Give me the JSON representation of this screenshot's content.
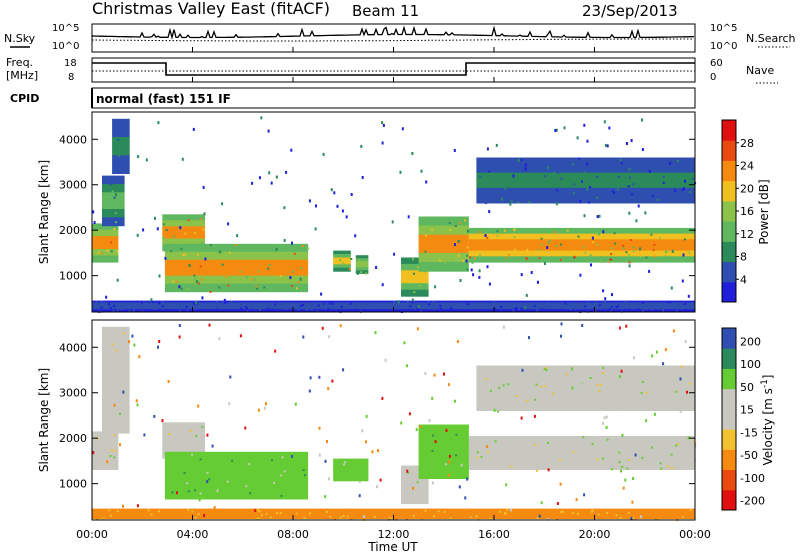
{
  "header": {
    "title": "Christmas Valley East (fitACF)",
    "beam": "Beam 11",
    "date": "23/Sep/2013"
  },
  "top_panel": {
    "left_label": "N.Sky",
    "right_label": "N.Search",
    "tick_top": "10^5",
    "tick_bottom": "10^0"
  },
  "freq_panel": {
    "left_label_1": "Freq.",
    "left_label_2": "[MHz]",
    "right_label": "Nave",
    "left_ticks": [
      "18",
      "8"
    ],
    "right_ticks": [
      "60",
      "0"
    ]
  },
  "cpid_panel": {
    "label": "CPID",
    "text": "normal (fast) 151 IF"
  },
  "colors": {
    "power": [
      "#1f1fd9",
      "#2f4fb0",
      "#2a8a5a",
      "#5fb85f",
      "#8bc24a",
      "#f0c020",
      "#f58a10",
      "#ea4a10",
      "#e01010"
    ],
    "velocity": [
      "#e01010",
      "#ea4a10",
      "#f58a10",
      "#f2c030",
      "#c8c8c0",
      "#c8c8c0",
      "#66cc33",
      "#2a8a5a",
      "#2f4fb0",
      "#1f1fd9"
    ]
  },
  "chart_data": [
    {
      "type": "heatmap",
      "name": "power",
      "xlabel": "",
      "ylabel": "Slant Range [km]",
      "ylim": [
        200,
        4600
      ],
      "xlim": [
        0,
        24
      ],
      "yticks": [
        "1000",
        "2000",
        "3000",
        "4000"
      ],
      "colorbar": {
        "label": "Power [dB]",
        "ticks": [
          "4",
          "8",
          "12",
          "16",
          "20",
          "24",
          "28"
        ],
        "range": [
          0,
          32
        ]
      },
      "features": [
        {
          "t0": 0.0,
          "t1": 1.05,
          "r0": 1300,
          "r1": 2150,
          "level": 26
        },
        {
          "t0": 0.4,
          "t1": 1.3,
          "r0": 2100,
          "r1": 3200,
          "level": 12
        },
        {
          "t0": 0.8,
          "t1": 1.5,
          "r0": 3250,
          "r1": 4450,
          "level": 10
        },
        {
          "t0": 2.8,
          "t1": 4.5,
          "r0": 1550,
          "r1": 2350,
          "level": 24
        },
        {
          "t0": 2.9,
          "t1": 8.6,
          "r0": 650,
          "r1": 1700,
          "level": 24
        },
        {
          "t0": 9.6,
          "t1": 10.3,
          "r0": 1100,
          "r1": 1550,
          "level": 20
        },
        {
          "t0": 10.5,
          "t1": 11.0,
          "r0": 1050,
          "r1": 1450,
          "level": 18
        },
        {
          "t0": 12.3,
          "t1": 13.4,
          "r0": 550,
          "r1": 1400,
          "level": 20
        },
        {
          "t0": 13.0,
          "t1": 15.0,
          "r0": 1100,
          "r1": 2300,
          "level": 24
        },
        {
          "t0": 15.0,
          "t1": 24.0,
          "r0": 1300,
          "r1": 2050,
          "level": 27
        },
        {
          "t0": 15.3,
          "t1": 24.0,
          "r0": 2600,
          "r1": 3600,
          "level": 8
        },
        {
          "t0": 0.0,
          "t1": 24.0,
          "r0": 220,
          "r1": 450,
          "level": 6
        }
      ]
    },
    {
      "type": "heatmap",
      "name": "velocity",
      "xlabel": "Time UT",
      "ylabel": "Slant Range [km]",
      "ylim": [
        200,
        4600
      ],
      "xlim": [
        0,
        24
      ],
      "xticks": [
        "00:00",
        "04:00",
        "08:00",
        "12:00",
        "16:00",
        "20:00",
        "00:00"
      ],
      "yticks": [
        "1000",
        "2000",
        "3000",
        "4000"
      ],
      "colorbar": {
        "label": "Velocity [m s^-1]",
        "ticks": [
          "200",
          "100",
          "50",
          "15",
          "-15",
          "-50",
          "-100",
          "-200"
        ]
      },
      "features": [
        {
          "t0": 0.0,
          "t1": 1.05,
          "r0": 1300,
          "r1": 2150,
          "level": 0
        },
        {
          "t0": 0.4,
          "t1": 1.5,
          "r0": 2100,
          "r1": 4450,
          "level": 0
        },
        {
          "t0": 2.8,
          "t1": 4.5,
          "r0": 1550,
          "r1": 2350,
          "level": 0
        },
        {
          "t0": 2.9,
          "t1": 8.6,
          "r0": 650,
          "r1": 1700,
          "level": 30
        },
        {
          "t0": 9.6,
          "t1": 11.0,
          "r0": 1050,
          "r1": 1550,
          "level": 30
        },
        {
          "t0": 12.3,
          "t1": 13.4,
          "r0": 550,
          "r1": 1400,
          "level": 0
        },
        {
          "t0": 13.0,
          "t1": 15.0,
          "r0": 1100,
          "r1": 2300,
          "level": 30
        },
        {
          "t0": 15.0,
          "t1": 24.0,
          "r0": 1300,
          "r1": 2050,
          "level": 0
        },
        {
          "t0": 15.3,
          "t1": 24.0,
          "r0": 2600,
          "r1": 3600,
          "level": 0
        },
        {
          "t0": 0.0,
          "t1": 24.0,
          "r0": 220,
          "r1": 450,
          "level": -60
        }
      ]
    }
  ]
}
